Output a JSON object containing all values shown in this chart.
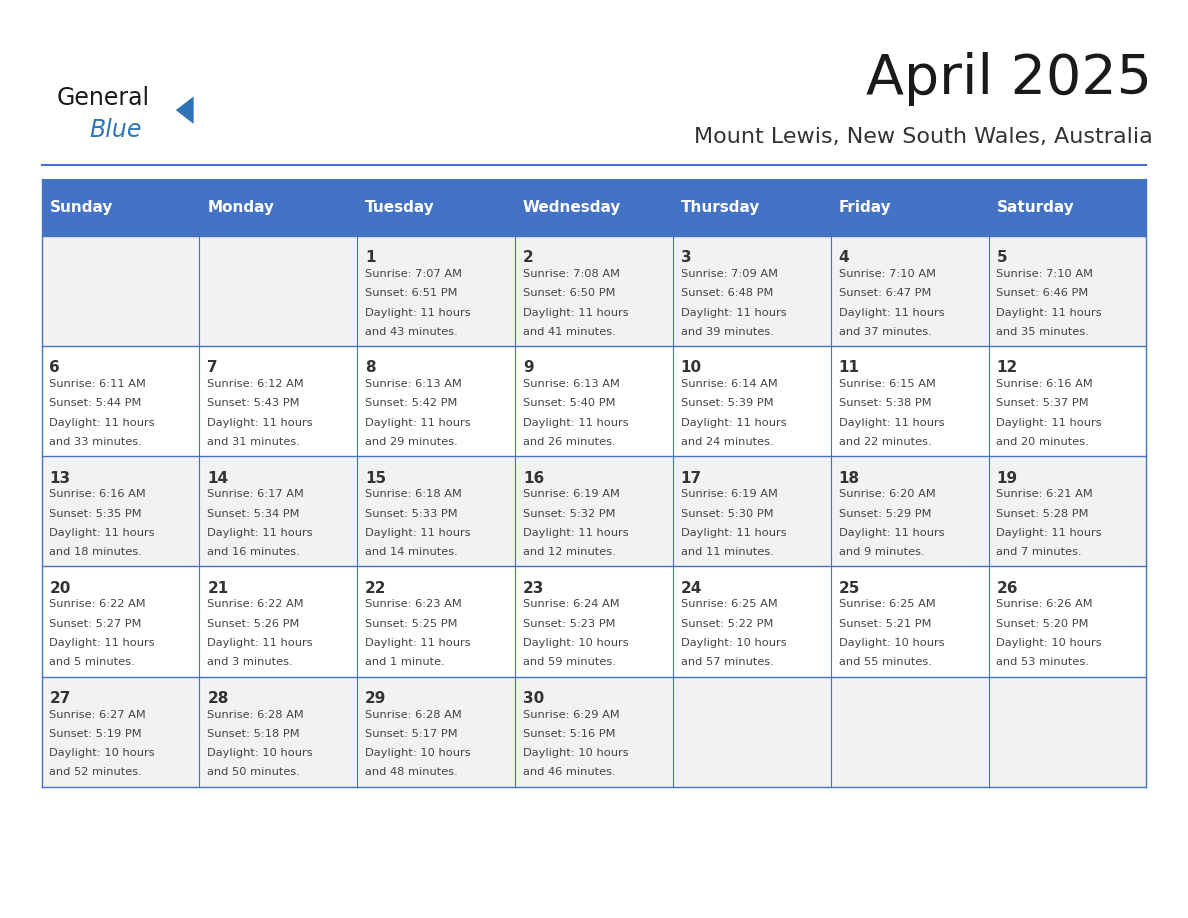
{
  "title": "April 2025",
  "subtitle": "Mount Lewis, New South Wales, Australia",
  "days_of_week": [
    "Sunday",
    "Monday",
    "Tuesday",
    "Wednesday",
    "Thursday",
    "Friday",
    "Saturday"
  ],
  "header_bg": "#4472C4",
  "header_text_color": "#FFFFFF",
  "row_bg_odd": "#F2F2F2",
  "row_bg_even": "#FFFFFF",
  "border_color": "#4472C4",
  "text_color": "#444444",
  "day_num_color": "#333333",
  "logo_general_color": "#1a1a1a",
  "logo_blue_color": "#2E75B6",
  "title_color": "#1a1a1a",
  "subtitle_color": "#333333",
  "calendar_data": [
    [
      {
        "day": "",
        "sunrise": "",
        "sunset": "",
        "daylight": ""
      },
      {
        "day": "",
        "sunrise": "",
        "sunset": "",
        "daylight": ""
      },
      {
        "day": "1",
        "sunrise": "7:07 AM",
        "sunset": "6:51 PM",
        "daylight": "11 hours\nand 43 minutes."
      },
      {
        "day": "2",
        "sunrise": "7:08 AM",
        "sunset": "6:50 PM",
        "daylight": "11 hours\nand 41 minutes."
      },
      {
        "day": "3",
        "sunrise": "7:09 AM",
        "sunset": "6:48 PM",
        "daylight": "11 hours\nand 39 minutes."
      },
      {
        "day": "4",
        "sunrise": "7:10 AM",
        "sunset": "6:47 PM",
        "daylight": "11 hours\nand 37 minutes."
      },
      {
        "day": "5",
        "sunrise": "7:10 AM",
        "sunset": "6:46 PM",
        "daylight": "11 hours\nand 35 minutes."
      }
    ],
    [
      {
        "day": "6",
        "sunrise": "6:11 AM",
        "sunset": "5:44 PM",
        "daylight": "11 hours\nand 33 minutes."
      },
      {
        "day": "7",
        "sunrise": "6:12 AM",
        "sunset": "5:43 PM",
        "daylight": "11 hours\nand 31 minutes."
      },
      {
        "day": "8",
        "sunrise": "6:13 AM",
        "sunset": "5:42 PM",
        "daylight": "11 hours\nand 29 minutes."
      },
      {
        "day": "9",
        "sunrise": "6:13 AM",
        "sunset": "5:40 PM",
        "daylight": "11 hours\nand 26 minutes."
      },
      {
        "day": "10",
        "sunrise": "6:14 AM",
        "sunset": "5:39 PM",
        "daylight": "11 hours\nand 24 minutes."
      },
      {
        "day": "11",
        "sunrise": "6:15 AM",
        "sunset": "5:38 PM",
        "daylight": "11 hours\nand 22 minutes."
      },
      {
        "day": "12",
        "sunrise": "6:16 AM",
        "sunset": "5:37 PM",
        "daylight": "11 hours\nand 20 minutes."
      }
    ],
    [
      {
        "day": "13",
        "sunrise": "6:16 AM",
        "sunset": "5:35 PM",
        "daylight": "11 hours\nand 18 minutes."
      },
      {
        "day": "14",
        "sunrise": "6:17 AM",
        "sunset": "5:34 PM",
        "daylight": "11 hours\nand 16 minutes."
      },
      {
        "day": "15",
        "sunrise": "6:18 AM",
        "sunset": "5:33 PM",
        "daylight": "11 hours\nand 14 minutes."
      },
      {
        "day": "16",
        "sunrise": "6:19 AM",
        "sunset": "5:32 PM",
        "daylight": "11 hours\nand 12 minutes."
      },
      {
        "day": "17",
        "sunrise": "6:19 AM",
        "sunset": "5:30 PM",
        "daylight": "11 hours\nand 11 minutes."
      },
      {
        "day": "18",
        "sunrise": "6:20 AM",
        "sunset": "5:29 PM",
        "daylight": "11 hours\nand 9 minutes."
      },
      {
        "day": "19",
        "sunrise": "6:21 AM",
        "sunset": "5:28 PM",
        "daylight": "11 hours\nand 7 minutes."
      }
    ],
    [
      {
        "day": "20",
        "sunrise": "6:22 AM",
        "sunset": "5:27 PM",
        "daylight": "11 hours\nand 5 minutes."
      },
      {
        "day": "21",
        "sunrise": "6:22 AM",
        "sunset": "5:26 PM",
        "daylight": "11 hours\nand 3 minutes."
      },
      {
        "day": "22",
        "sunrise": "6:23 AM",
        "sunset": "5:25 PM",
        "daylight": "11 hours\nand 1 minute."
      },
      {
        "day": "23",
        "sunrise": "6:24 AM",
        "sunset": "5:23 PM",
        "daylight": "10 hours\nand 59 minutes."
      },
      {
        "day": "24",
        "sunrise": "6:25 AM",
        "sunset": "5:22 PM",
        "daylight": "10 hours\nand 57 minutes."
      },
      {
        "day": "25",
        "sunrise": "6:25 AM",
        "sunset": "5:21 PM",
        "daylight": "10 hours\nand 55 minutes."
      },
      {
        "day": "26",
        "sunrise": "6:26 AM",
        "sunset": "5:20 PM",
        "daylight": "10 hours\nand 53 minutes."
      }
    ],
    [
      {
        "day": "27",
        "sunrise": "6:27 AM",
        "sunset": "5:19 PM",
        "daylight": "10 hours\nand 52 minutes."
      },
      {
        "day": "28",
        "sunrise": "6:28 AM",
        "sunset": "5:18 PM",
        "daylight": "10 hours\nand 50 minutes."
      },
      {
        "day": "29",
        "sunrise": "6:28 AM",
        "sunset": "5:17 PM",
        "daylight": "10 hours\nand 48 minutes."
      },
      {
        "day": "30",
        "sunrise": "6:29 AM",
        "sunset": "5:16 PM",
        "daylight": "10 hours\nand 46 minutes."
      },
      {
        "day": "",
        "sunrise": "",
        "sunset": "",
        "daylight": ""
      },
      {
        "day": "",
        "sunrise": "",
        "sunset": "",
        "daylight": ""
      },
      {
        "day": "",
        "sunrise": "",
        "sunset": "",
        "daylight": ""
      }
    ]
  ]
}
